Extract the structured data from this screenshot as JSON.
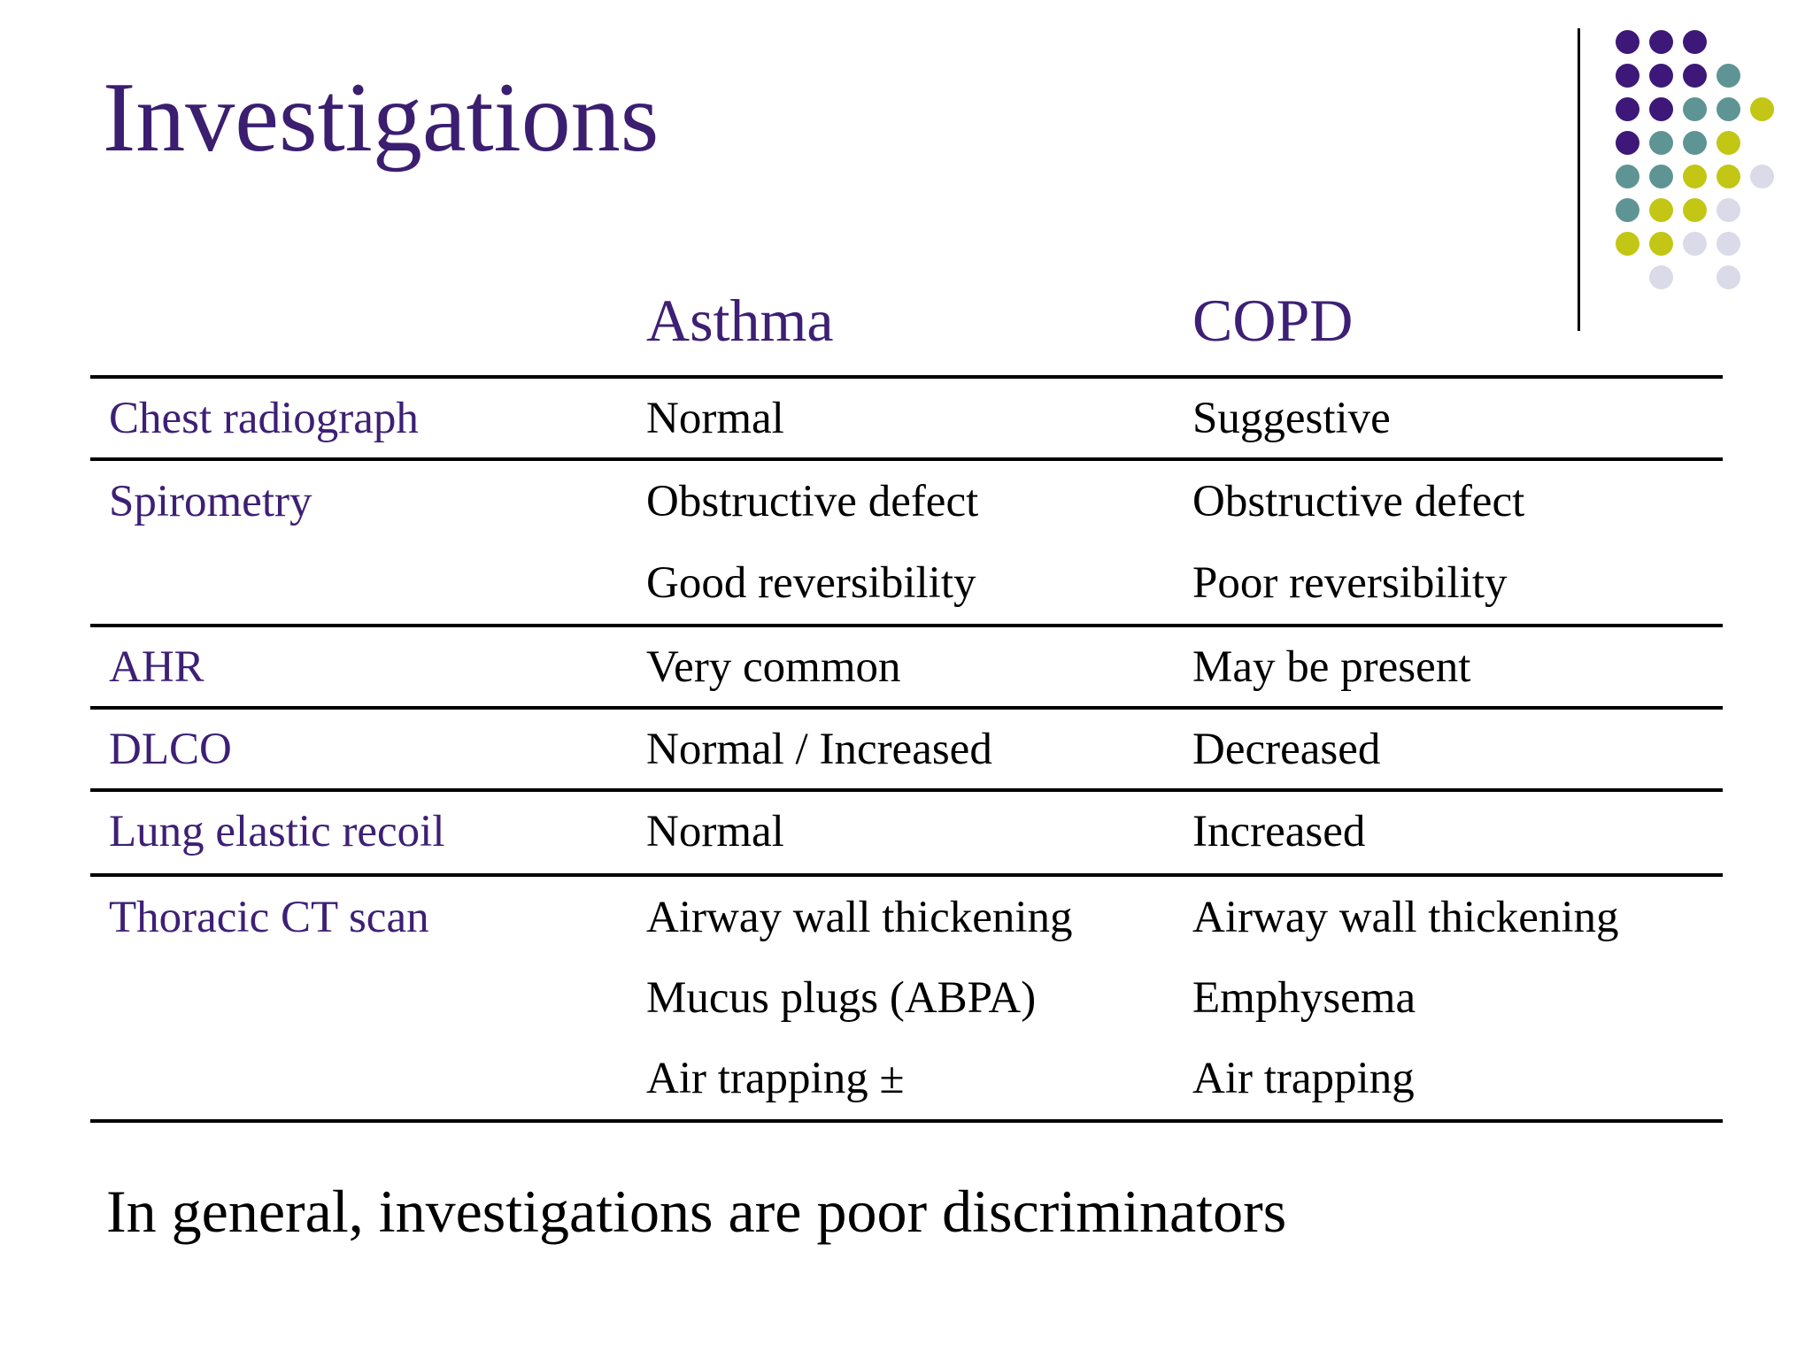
{
  "slide": {
    "title": "Investigations",
    "footer": "In general, investigations are poor discriminators"
  },
  "table": {
    "col_headers": [
      "Asthma",
      "COPD"
    ],
    "rows": [
      {
        "label": "Chest radiograph",
        "asthma": [
          "Normal"
        ],
        "copd": [
          "Suggestive"
        ]
      },
      {
        "label": "Spirometry",
        "asthma": [
          "Obstructive defect",
          "Good reversibility"
        ],
        "copd": [
          "Obstructive defect",
          "Poor reversibility"
        ]
      },
      {
        "label": "AHR",
        "asthma": [
          "Very common"
        ],
        "copd": [
          "May be present"
        ]
      },
      {
        "label": "DLCO",
        "asthma": [
          "Normal / Increased"
        ],
        "copd": [
          "Decreased"
        ]
      },
      {
        "label": "Lung elastic recoil",
        "asthma": [
          "Normal"
        ],
        "copd": [
          "Increased"
        ]
      },
      {
        "label": "Thoracic CT scan",
        "asthma": [
          "Airway wall thickening",
          "Mucus plugs (ABPA)",
          "Air trapping ±"
        ],
        "copd": [
          "Airway wall thickening",
          "Emphysema",
          "Air trapping"
        ]
      }
    ]
  },
  "colors": {
    "title_purple": "#3B1E70",
    "label_purple": "#3D2075",
    "body_text": "#000000",
    "rule_black": "#000000",
    "dot_purple": "#3D1878",
    "dot_teal": "#5F9494",
    "dot_yellow": "#C3C614",
    "dot_lavender": "#DADAE8"
  },
  "decoration": {
    "dot_grid": [
      [
        "purple",
        "purple",
        "purple",
        null,
        null
      ],
      [
        "purple",
        "purple",
        "purple",
        "teal",
        null
      ],
      [
        "purple",
        "purple",
        "teal",
        "teal",
        "yellow"
      ],
      [
        "purple",
        "teal",
        "teal",
        "yellow",
        null
      ],
      [
        "teal",
        "teal",
        "yellow",
        "yellow",
        "lavender"
      ],
      [
        "teal",
        "yellow",
        "yellow",
        "lavender",
        null
      ],
      [
        "yellow",
        "yellow",
        "lavender",
        "lavender",
        null
      ],
      [
        null,
        "lavender",
        null,
        "lavender",
        null
      ]
    ]
  }
}
